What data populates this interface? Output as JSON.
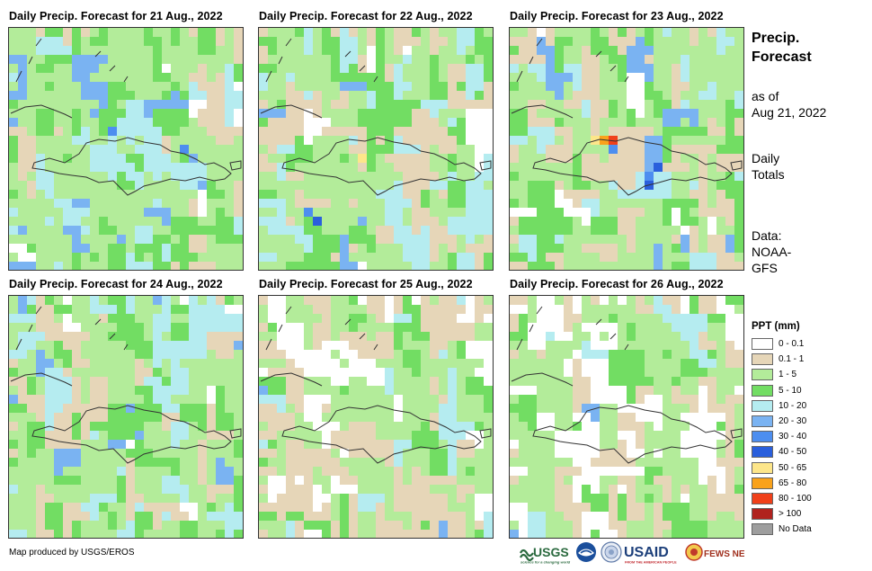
{
  "panels": [
    {
      "title": "Daily Precip. Forecast for 21 Aug., 2022"
    },
    {
      "title": "Daily Precip. Forecast for 22 Aug., 2022"
    },
    {
      "title": "Daily Precip. Forecast for 23 Aug., 2022"
    },
    {
      "title": "Daily Precip. Forecast for 24 Aug., 2022"
    },
    {
      "title": "Daily Precip. Forecast for 25 Aug., 2022"
    },
    {
      "title": "Daily Precip. Forecast for 26 Aug., 2022"
    }
  ],
  "side": {
    "title_line1": "Precip.",
    "title_line2": "Forecast",
    "asof_line1": "as of",
    "asof_line2": "Aug 21, 2022",
    "daily_line1": "Daily",
    "daily_line2": "Totals",
    "data_line1": "Data:",
    "data_line2": "NOAA-",
    "data_line3": "GFS"
  },
  "legend": {
    "title": "PPT (mm)",
    "items": [
      {
        "label": "0 - 0.1",
        "color": "#ffffff"
      },
      {
        "label": "0.1 - 1",
        "color": "#e6d6b8"
      },
      {
        "label": "1 - 5",
        "color": "#b3ec9a"
      },
      {
        "label": "5 - 10",
        "color": "#72dd63"
      },
      {
        "label": "10 - 20",
        "color": "#b5ecf0"
      },
      {
        "label": "20 - 30",
        "color": "#7ab3f2"
      },
      {
        "label": "30 - 40",
        "color": "#4d8ef0"
      },
      {
        "label": "40 - 50",
        "color": "#2a5fdc"
      },
      {
        "label": "50 - 65",
        "color": "#fde68a"
      },
      {
        "label": "65 - 80",
        "color": "#f9a21b"
      },
      {
        "label": "80 - 100",
        "color": "#f0401a"
      },
      {
        "label": "> 100",
        "color": "#b0221e"
      },
      {
        "label": "No Data",
        "color": "#9e9e9e"
      }
    ]
  },
  "credit": "Map produced by USGS/EROS",
  "logos": {
    "usgs": "USGS",
    "usgs_tag": "science for a changing world",
    "usaid": "USAID",
    "usaid_tag": "FROM THE AMERICAN PEOPLE",
    "fews": "FEWS NET"
  }
}
